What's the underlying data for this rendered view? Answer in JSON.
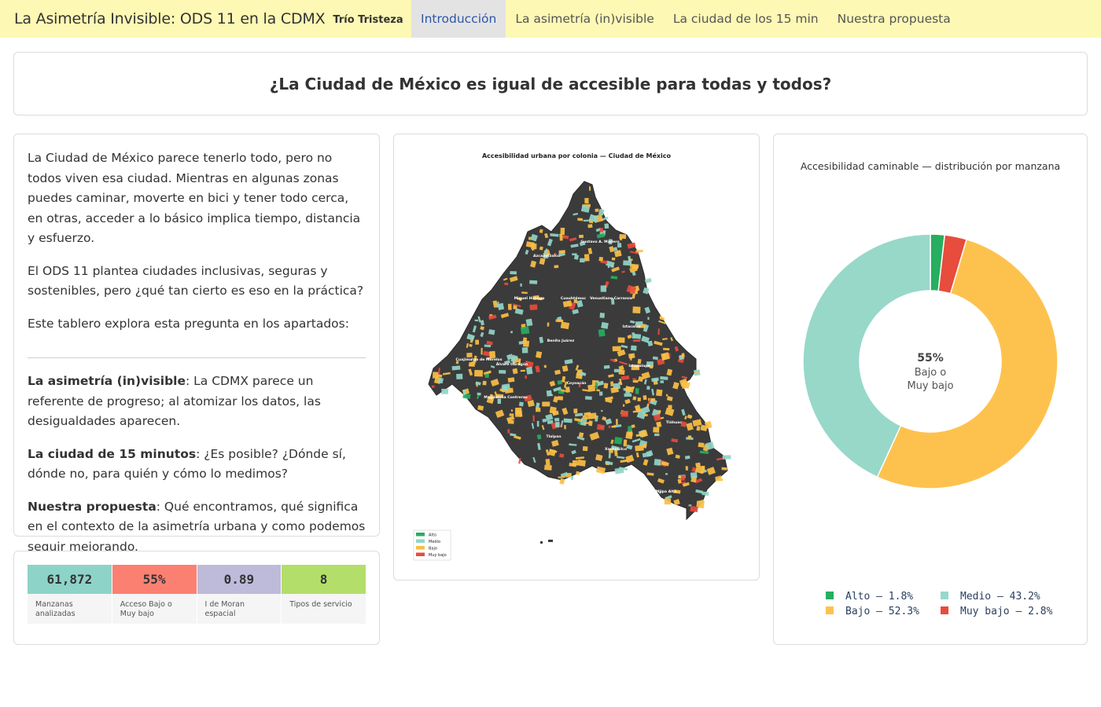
{
  "header": {
    "brand": "La Asimetría Invisible: ODS 11 en la CDMX",
    "team": "Trío Tristeza",
    "tabs": [
      {
        "label": "Introducción",
        "active": true
      },
      {
        "label": "La asimetría (in)visible",
        "active": false
      },
      {
        "label": "La ciudad de los 15 min",
        "active": false
      },
      {
        "label": "Nuestra propuesta",
        "active": false
      }
    ]
  },
  "question": "¿La Ciudad de México es igual de accesible para todas y todos?",
  "intro": {
    "p1": "La Ciudad de México parece tenerlo todo, pero no todos viven esa ciudad. Mientras en algunas zonas puedes caminar, moverte en bici y tener todo cerca, en otras, acceder a lo básico implica tiempo, distancia y esfuerzo.",
    "p2": "El ODS 11 plantea ciudades inclusivas, seguras y sostenibles, pero ¿qué tan cierto es eso en la práctica?",
    "p3": "Este tablero explora esta pregunta en los apartados:",
    "sections": [
      {
        "title": "La asimetría (in)visible",
        "text": ": La CDMX parece un referente de progreso; al atomizar los datos, las desigualdades aparecen."
      },
      {
        "title": "La ciudad de 15 minutos",
        "text": ": ¿Es posible? ¿Dónde sí, dónde no, para quién y cómo lo medimos?"
      },
      {
        "title": "Nuestra propuesta",
        "text": ": Qué encontramos, qué significa en el contexto de la asimetría urbana y como podemos seguir mejorando."
      }
    ]
  },
  "kpis": [
    {
      "value": "61,872",
      "label": "Manzanas analizadas",
      "color": "#8ed3c7"
    },
    {
      "value": "55%",
      "label": "Acceso Bajo o Muy bajo",
      "color": "#fb8072"
    },
    {
      "value": "0.89",
      "label": "I de Moran espacial",
      "color": "#bebada"
    },
    {
      "value": "8",
      "label": "Tipos de servicio",
      "color": "#b3de69"
    }
  ],
  "map": {
    "title": "Accesibilidad urbana por colonia — Ciudad de México",
    "legend": [
      {
        "label": "Alto",
        "color": "#27ae60"
      },
      {
        "label": "Medio",
        "color": "#91d5c8"
      },
      {
        "label": "Bajo",
        "color": "#fbbf45"
      },
      {
        "label": "Muy bajo",
        "color": "#e74c3c"
      }
    ],
    "place_labels": [
      "Gustavo A. Madero",
      "Azcapotzalco",
      "Miguel Hidalgo",
      "Cuauhtémoc",
      "Venustiano Carranza",
      "Benito Juárez",
      "Iztacalco",
      "Cuajimalpa de Morelos",
      "Álvaro Obregón",
      "Iztapalapa",
      "Coyoacán",
      "Magdalena Contreras",
      "Tlalpan",
      "Xochimilco",
      "Tláhuac",
      "Milpa Alta"
    ]
  },
  "chart_data": {
    "type": "pie",
    "title": "Accesibilidad caminable — distribución por manzana",
    "hole": true,
    "center_value": "55%",
    "center_text": "Bajo o Muy bajo",
    "center_lines": [
      "Bajo o",
      "Muy bajo"
    ],
    "slices": [
      {
        "label": "Alto",
        "value": 1.8,
        "color": "#27ae60"
      },
      {
        "label": "Muy bajo",
        "value": 2.8,
        "color": "#e74c3c"
      },
      {
        "label": "Bajo",
        "value": 52.3,
        "color": "#fdc24e"
      },
      {
        "label": "Medio",
        "value": 43.2,
        "color": "#97d8c9"
      }
    ],
    "legend": [
      "Alto — 1.8%",
      "Medio — 43.2%",
      "Bajo — 52.3%",
      "Muy bajo — 2.8%"
    ],
    "legend_position": "bottom"
  }
}
